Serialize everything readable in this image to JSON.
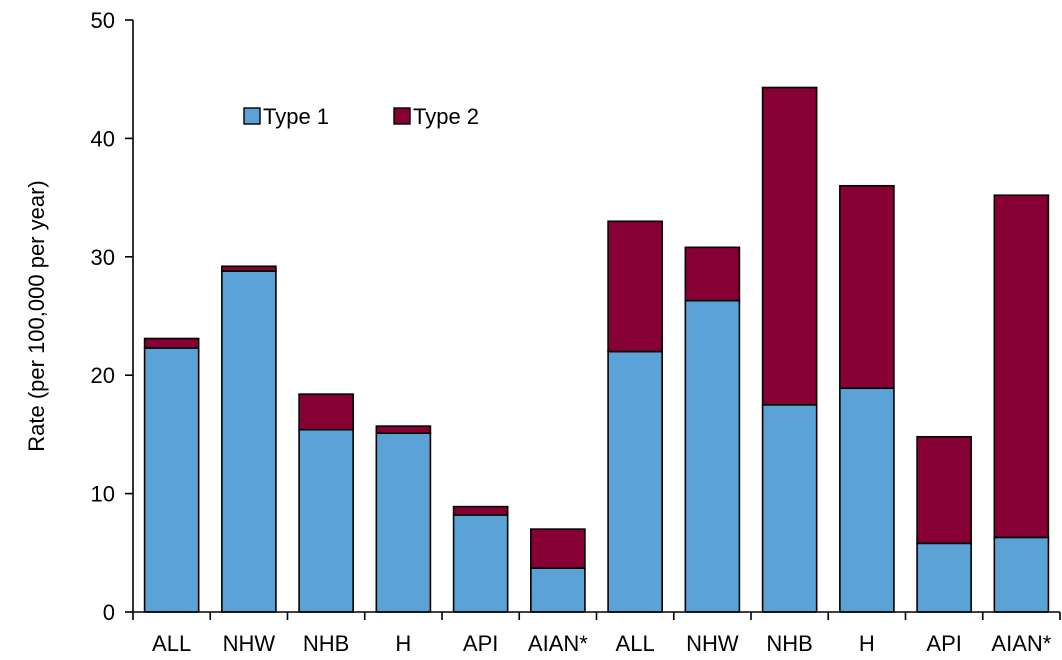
{
  "chart_data": {
    "type": "bar",
    "stacked": true,
    "categories": [
      "ALL",
      "NHW",
      "NHB",
      "H",
      "API",
      "AIAN*",
      "ALL",
      "NHW",
      "NHB",
      "H",
      "API",
      "AIAN*"
    ],
    "series": [
      {
        "name": "Type 1",
        "color": "#5BA3D6",
        "values": [
          22.3,
          28.8,
          15.4,
          15.1,
          8.2,
          3.7,
          22.0,
          26.3,
          17.5,
          18.9,
          5.8,
          6.3
        ]
      },
      {
        "name": "Type 2",
        "color": "#870033",
        "values": [
          0.8,
          0.4,
          3.0,
          0.6,
          0.7,
          3.3,
          11.0,
          4.5,
          26.8,
          17.1,
          9.0,
          28.9
        ]
      }
    ],
    "title": "",
    "xlabel": "",
    "ylabel": "Rate (per 100,000 per year)",
    "ylim": [
      0,
      50
    ],
    "yticks": [
      0,
      10,
      20,
      30,
      40,
      50
    ],
    "grid": false,
    "legend_position": "top-left"
  }
}
